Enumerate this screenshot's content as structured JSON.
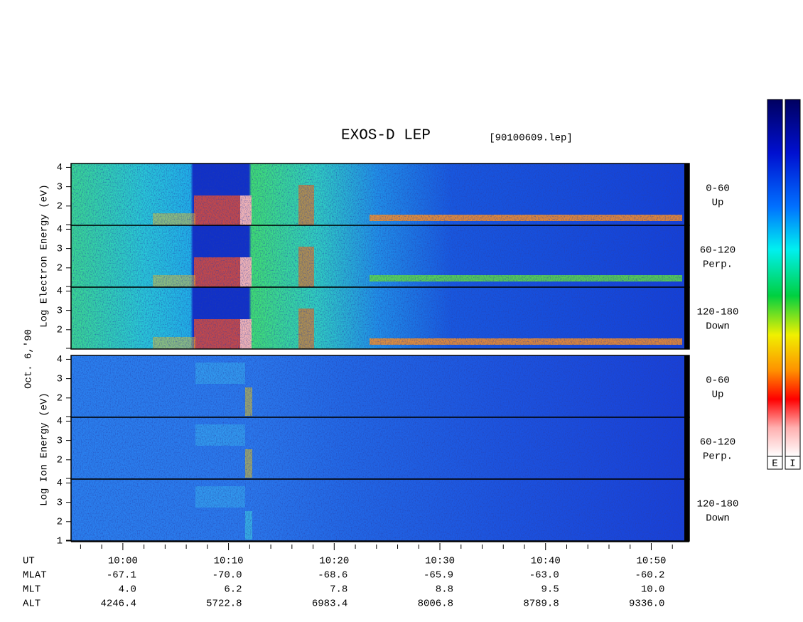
{
  "title": "EXOS-D LEP",
  "file": "[90100609.lep]",
  "date": "Oct. 6,'90",
  "electron_ylabel": "Log  Electron  Energy (eV)",
  "ion_ylabel": "Log   Ion   Energy (eV)",
  "ylim": [
    1,
    4.2
  ],
  "panels": [
    {
      "species": "electron",
      "yticks": [
        2,
        3,
        4
      ],
      "angle": "0-60",
      "direction": "Up"
    },
    {
      "species": "electron",
      "yticks": [
        2,
        3,
        4
      ],
      "angle": "60-120",
      "direction": "Perp."
    },
    {
      "species": "electron",
      "yticks": [
        2,
        3,
        4
      ],
      "angle": "120-180",
      "direction": "Down"
    },
    {
      "species": "ion",
      "yticks": [
        2,
        3,
        4
      ],
      "angle": "0-60",
      "direction": "Up"
    },
    {
      "species": "ion",
      "yticks": [
        2,
        3,
        4
      ],
      "angle": "60-120",
      "direction": "Perp."
    },
    {
      "species": "ion",
      "yticks": [
        1,
        2,
        3,
        4
      ],
      "angle": "120-180",
      "direction": "Down"
    }
  ],
  "xlim": [
    595.1,
    653.6
  ],
  "xticks": [
    {
      "value": 600,
      "label": "10:00"
    },
    {
      "value": 610,
      "label": "10:10"
    },
    {
      "value": 620,
      "label": "10:20"
    },
    {
      "value": 630,
      "label": "10:30"
    },
    {
      "value": 640,
      "label": "10:40"
    },
    {
      "value": 650,
      "label": "10:50"
    }
  ],
  "minor_xticks": [
    596,
    598,
    602,
    604,
    606,
    608,
    612,
    614,
    616,
    618,
    622,
    624,
    626,
    628,
    632,
    634,
    636,
    638,
    642,
    644,
    646,
    648,
    652
  ],
  "table": {
    "ut_label": "UT",
    "rows": [
      {
        "label": "MLAT",
        "values": [
          "-67.1",
          "-70.0",
          "-68.6",
          "-65.9",
          "-63.0",
          "-60.2"
        ]
      },
      {
        "label": "MLT",
        "values": [
          "4.0",
          "6.2",
          "7.8",
          "8.8",
          "9.5",
          "10.0"
        ]
      },
      {
        "label": "ALT",
        "values": [
          "4246.4",
          "5722.8",
          "6983.4",
          "8006.8",
          "8789.8",
          "9336.0"
        ]
      }
    ]
  },
  "colorbars": [
    "E",
    "I"
  ]
}
